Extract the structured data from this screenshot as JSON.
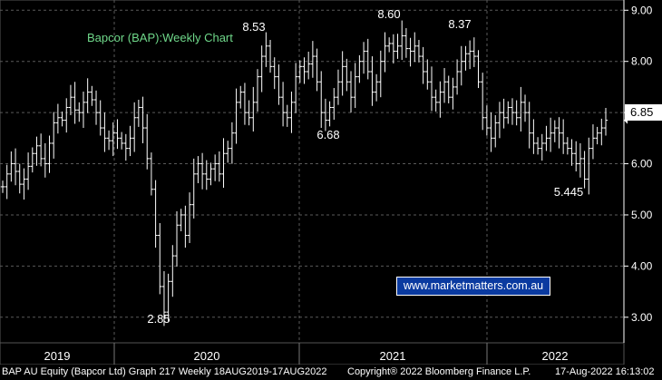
{
  "footer": {
    "left": "BAP AU Equity (Bapcor Ltd) Graph 217  Weekly 18AUG2019-17AUG2022",
    "center": "Copyright® 2022 Bloomberg Finance L.P.",
    "right": "17-Aug-2022 16:13:02"
  },
  "watermark": "www.marketmatters.com.au",
  "chart_data": {
    "type": "ohlc",
    "title": "Bapcor (BAP):Weekly Chart",
    "y_axis": {
      "position": "right",
      "min": 2.5,
      "max": 9.2,
      "ticks": [
        "3.00",
        "4.00",
        "5.00",
        "6.00",
        "7.00",
        "8.00",
        "9.00"
      ]
    },
    "x_axis": {
      "labels": [
        "2019",
        "2020",
        "2021",
        "2022"
      ]
    },
    "last_price": {
      "value": 6.85,
      "label": "6.85"
    },
    "annotations": [
      {
        "label": "8.53",
        "value": 8.53
      },
      {
        "label": "2.85",
        "value": 2.85
      },
      {
        "label": "6.68",
        "value": 6.68
      },
      {
        "label": "8.60",
        "value": 8.6
      },
      {
        "label": "8.37",
        "value": 8.37
      },
      {
        "label": "5.445",
        "value": 5.445
      }
    ],
    "series": [
      {
        "values": [
          5.55,
          5.8,
          6.0,
          5.85,
          5.6,
          5.7,
          5.95,
          6.2,
          6.35,
          6.1,
          6.0,
          6.4,
          6.8,
          6.9,
          6.85,
          7.1,
          7.3,
          7.05,
          7.0,
          7.2,
          7.4,
          7.25,
          7.0,
          6.7,
          6.5,
          6.45,
          6.6,
          6.5,
          6.4,
          6.3,
          6.5,
          6.9,
          7.1,
          6.7,
          6.1,
          5.5,
          4.6,
          3.6,
          3.1,
          3.7,
          4.2,
          4.8,
          5.0,
          4.6,
          5.2,
          5.8,
          6.0,
          5.8,
          5.7,
          5.9,
          6.0,
          5.8,
          6.2,
          6.3,
          6.6,
          7.2,
          7.4,
          7.0,
          6.9,
          7.2,
          7.7,
          8.1,
          8.3,
          7.9,
          7.7,
          7.3,
          7.0,
          6.9,
          7.2,
          7.7,
          7.9,
          7.8,
          7.95,
          8.1,
          7.6,
          7.0,
          6.85,
          7.1,
          7.3,
          7.6,
          7.9,
          7.6,
          7.3,
          7.7,
          8.0,
          8.2,
          7.8,
          7.4,
          7.6,
          8.0,
          8.3,
          8.35,
          8.2,
          8.3,
          8.5,
          8.25,
          8.2,
          8.3,
          8.1,
          7.8,
          7.6,
          7.3,
          7.2,
          7.4,
          7.6,
          7.3,
          7.5,
          7.8,
          8.0,
          8.15,
          8.2,
          8.1,
          7.6,
          6.9,
          6.7,
          6.5,
          6.8,
          7.0,
          6.9,
          7.1,
          7.0,
          6.9,
          7.2,
          7.0,
          6.6,
          6.4,
          6.3,
          6.4,
          6.5,
          6.6,
          6.7,
          6.6,
          6.4,
          6.3,
          6.2,
          6.0,
          6.1,
          5.7,
          6.3,
          6.5,
          6.6,
          6.7,
          6.85
        ]
      }
    ]
  }
}
